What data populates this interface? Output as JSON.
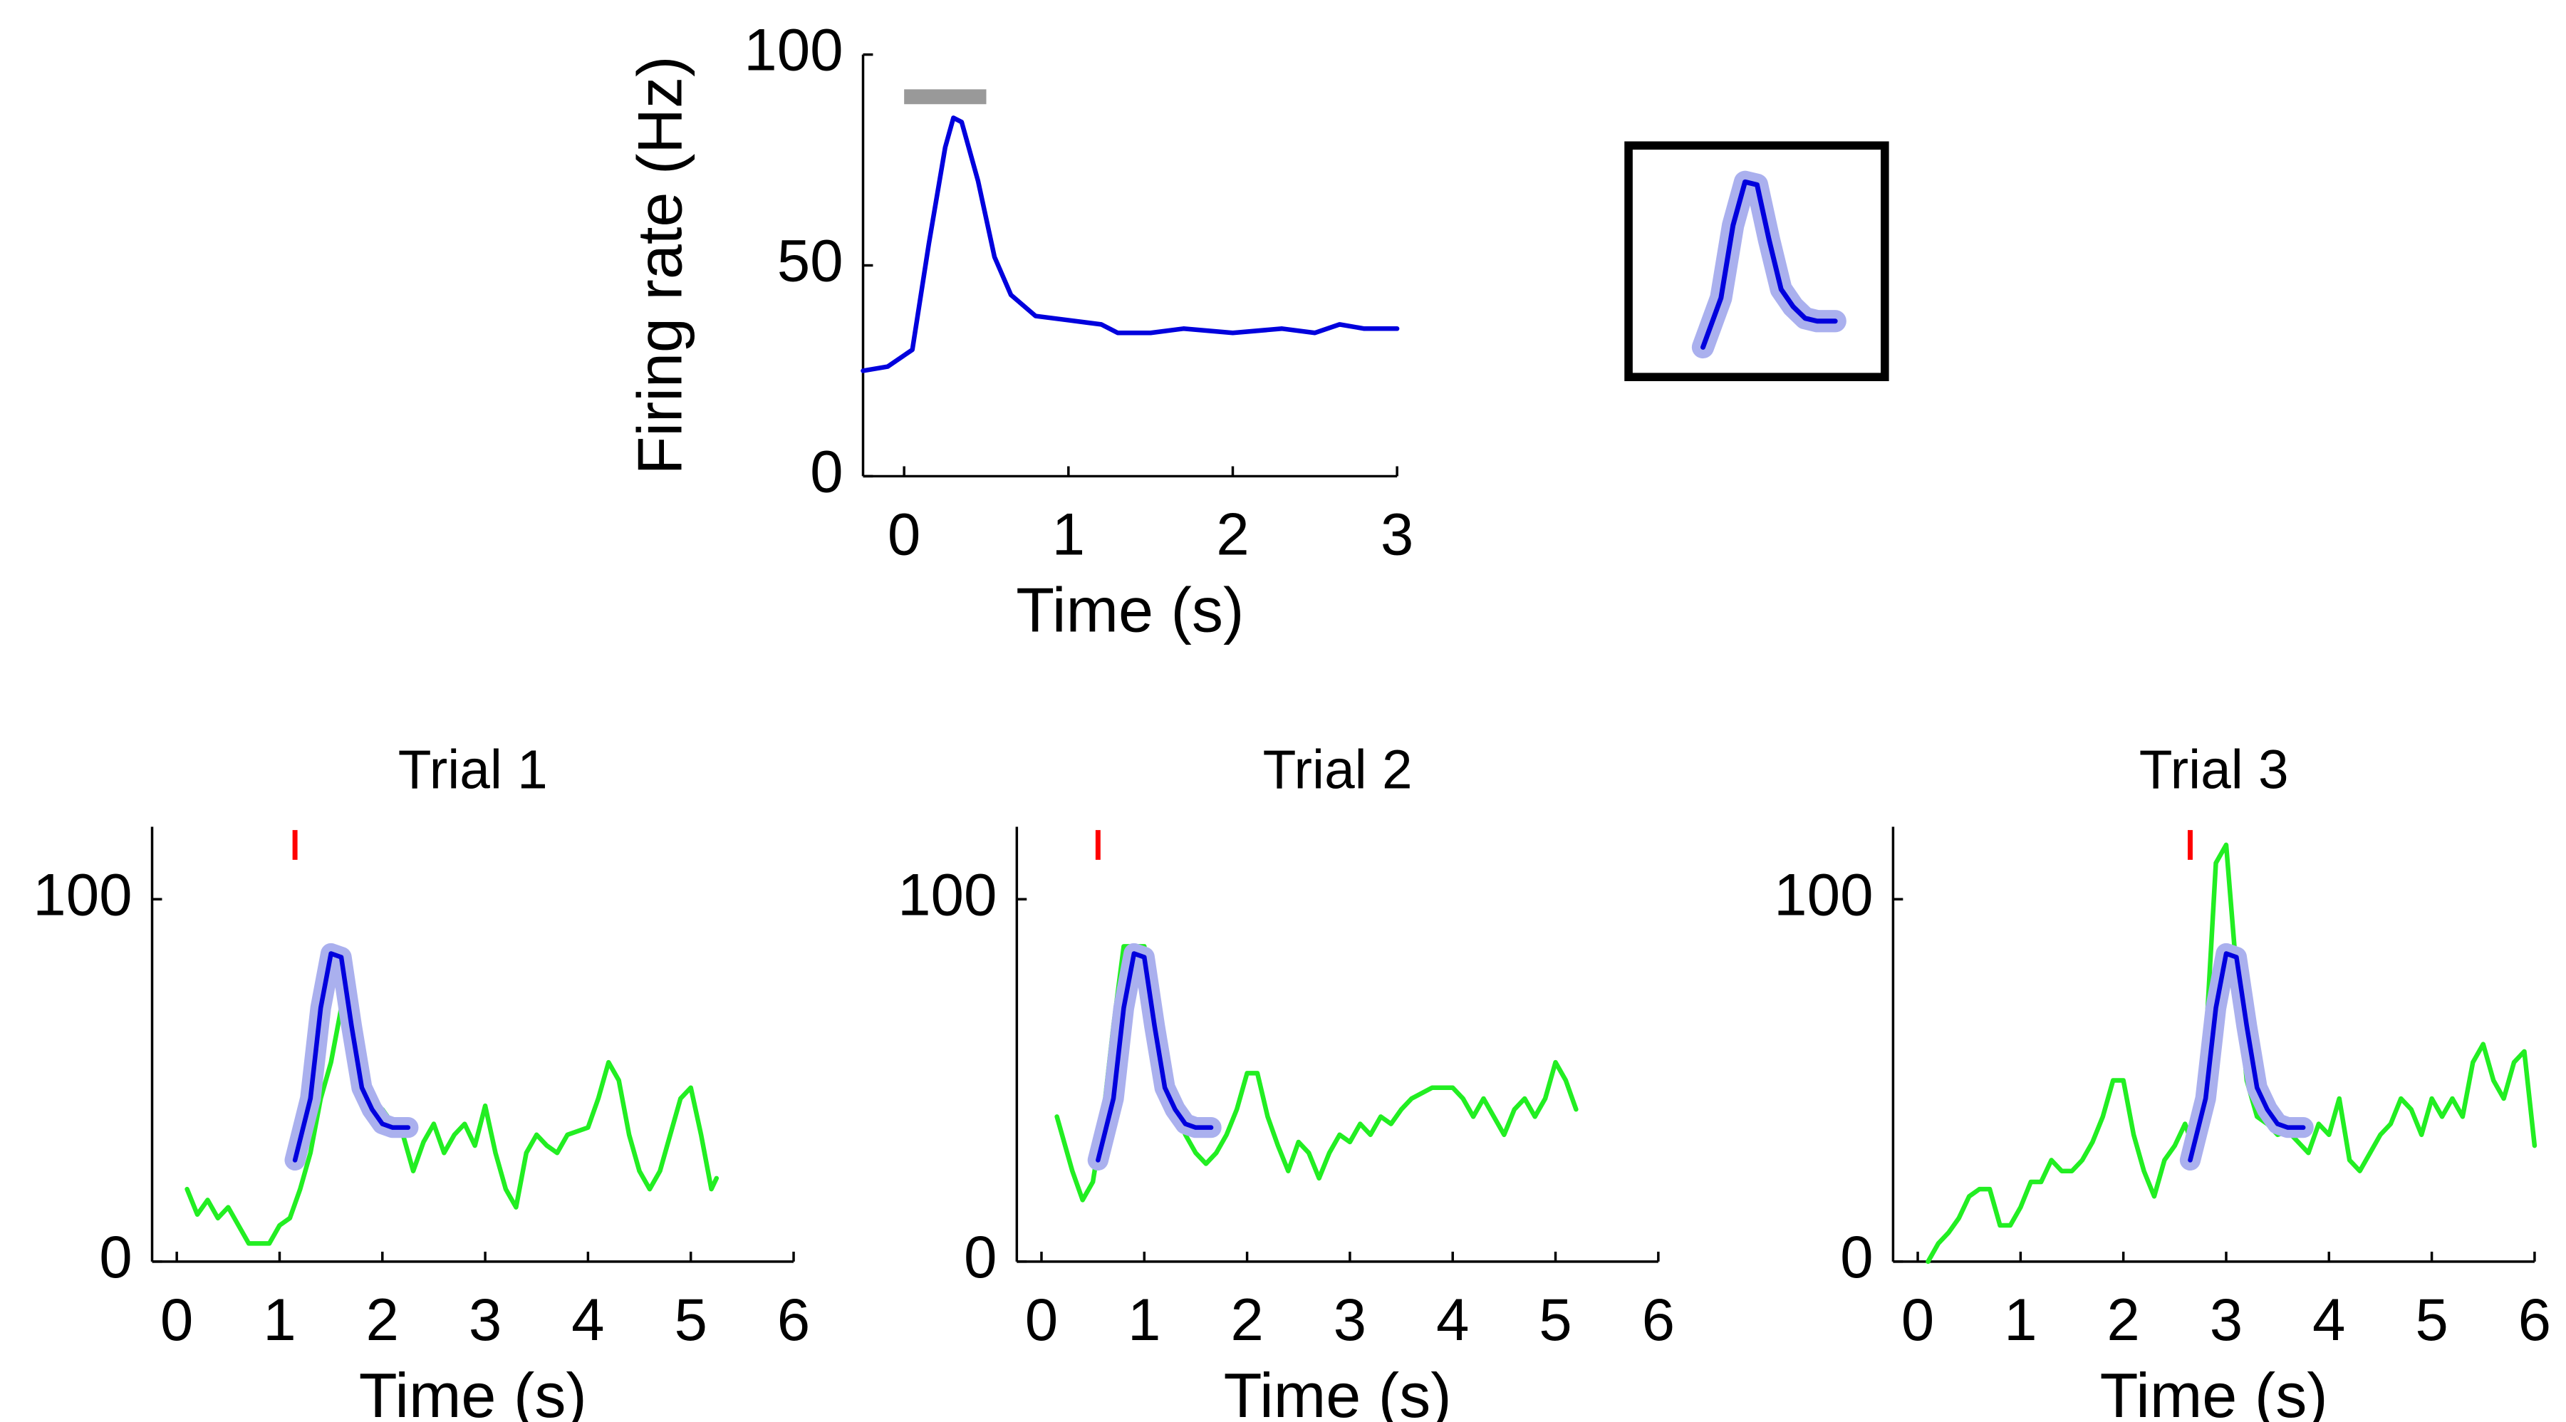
{
  "chart_data": [
    {
      "type": "line",
      "xlabel": "Time (s)",
      "ylabel": "Firing rate (Hz)",
      "xlim": [
        -0.25,
        3
      ],
      "ylim": [
        0,
        100
      ],
      "xticks": [
        0,
        1,
        2,
        3
      ],
      "yticks": [
        0,
        50,
        100
      ],
      "stimulus": {
        "x": [
          0,
          0.5
        ],
        "y": 90,
        "color": "#999999"
      },
      "series": [
        {
          "color": "#0000dd",
          "x": [
            -0.25,
            -0.1,
            0.05,
            0.15,
            0.25,
            0.3,
            0.35,
            0.45,
            0.55,
            0.65,
            0.8,
            1.0,
            1.2,
            1.3,
            1.5,
            1.7,
            2.0,
            2.3,
            2.5,
            2.65,
            2.8,
            3.0
          ],
          "values": [
            25,
            26,
            30,
            55,
            78,
            85,
            84,
            70,
            52,
            43,
            38,
            37,
            36,
            34,
            34,
            35,
            34,
            35,
            34,
            36,
            35,
            35
          ]
        }
      ]
    },
    {
      "type": "template",
      "band_color": "#aab0ee",
      "series": [
        {
          "color": "#0000dd",
          "x": [
            0,
            0.15,
            0.25,
            0.35,
            0.45,
            0.55,
            0.65,
            0.75,
            0.85,
            0.95,
            1.1
          ],
          "values": [
            28,
            45,
            70,
            85,
            84,
            65,
            48,
            42,
            38,
            37,
            37
          ]
        }
      ]
    },
    {
      "type": "trial",
      "title": "Trial 1",
      "xlabel": "Time (s)",
      "xlim": [
        -0.24,
        6
      ],
      "ylim": [
        0,
        120
      ],
      "xticks": [
        0,
        1,
        2,
        3,
        4,
        5,
        6
      ],
      "yticks": [
        0,
        100
      ],
      "marker": {
        "x": 1.15,
        "color": "#ff0000"
      },
      "band_color": "#aab0ee",
      "series": [
        {
          "color": "#22ee22",
          "x": [
            0.1,
            0.2,
            0.3,
            0.4,
            0.5,
            0.7,
            0.9,
            1.0,
            1.1,
            1.2,
            1.3,
            1.4,
            1.5,
            1.6,
            1.7,
            1.8,
            1.9,
            2.0,
            2.1,
            2.2,
            2.3,
            2.4,
            2.5,
            2.6,
            2.7,
            2.8,
            2.9,
            3.0,
            3.1,
            3.2,
            3.3,
            3.4,
            3.5,
            3.6,
            3.7,
            3.8,
            4.0,
            4.1,
            4.2,
            4.3,
            4.4,
            4.5,
            4.6,
            4.7,
            4.8,
            4.9,
            5.0,
            5.1,
            5.2,
            5.25
          ],
          "values": [
            20,
            13,
            17,
            12,
            15,
            5,
            5,
            10,
            12,
            20,
            30,
            45,
            55,
            70,
            60,
            45,
            40,
            42,
            38,
            35,
            25,
            33,
            38,
            30,
            35,
            38,
            32,
            43,
            30,
            20,
            15,
            30,
            35,
            32,
            30,
            35,
            37,
            45,
            55,
            50,
            35,
            25,
            20,
            25,
            35,
            45,
            48,
            35,
            20,
            23
          ]
        },
        {
          "color": "#0000dd",
          "template": true,
          "x": [
            1.15,
            1.3,
            1.4,
            1.5,
            1.6,
            1.7,
            1.8,
            1.9,
            2.0,
            2.1,
            2.25
          ],
          "values": [
            28,
            45,
            70,
            85,
            84,
            65,
            48,
            42,
            38,
            37,
            37
          ]
        }
      ]
    },
    {
      "type": "trial",
      "title": "Trial 2",
      "xlabel": "Time (s)",
      "xlim": [
        -0.24,
        6
      ],
      "ylim": [
        0,
        120
      ],
      "xticks": [
        0,
        1,
        2,
        3,
        4,
        5,
        6
      ],
      "yticks": [
        0,
        100
      ],
      "marker": {
        "x": 0.55,
        "color": "#ff0000"
      },
      "band_color": "#aab0ee",
      "series": [
        {
          "color": "#22ee22",
          "x": [
            0.15,
            0.3,
            0.4,
            0.5,
            0.6,
            0.7,
            0.8,
            0.9,
            1.0,
            1.1,
            1.2,
            1.3,
            1.4,
            1.5,
            1.6,
            1.7,
            1.8,
            1.9,
            2.0,
            2.1,
            2.2,
            2.3,
            2.4,
            2.5,
            2.6,
            2.7,
            2.8,
            2.9,
            3.0,
            3.1,
            3.2,
            3.3,
            3.4,
            3.5,
            3.6,
            3.8,
            4.0,
            4.1,
            4.2,
            4.3,
            4.4,
            4.5,
            4.6,
            4.7,
            4.8,
            4.9,
            5.0,
            5.1,
            5.2
          ],
          "values": [
            40,
            25,
            17,
            22,
            40,
            65,
            87,
            87,
            87,
            70,
            55,
            42,
            35,
            30,
            27,
            30,
            35,
            42,
            52,
            52,
            40,
            32,
            25,
            33,
            30,
            23,
            30,
            35,
            33,
            38,
            35,
            40,
            38,
            42,
            45,
            48,
            48,
            45,
            40,
            45,
            40,
            35,
            42,
            45,
            40,
            45,
            55,
            50,
            42
          ]
        },
        {
          "color": "#0000dd",
          "template": true,
          "x": [
            0.55,
            0.7,
            0.8,
            0.9,
            1.0,
            1.1,
            1.2,
            1.3,
            1.4,
            1.5,
            1.65
          ],
          "values": [
            28,
            45,
            70,
            85,
            84,
            65,
            48,
            42,
            38,
            37,
            37
          ]
        }
      ]
    },
    {
      "type": "trial",
      "title": "Trial 3",
      "xlabel": "Time (s)",
      "xlim": [
        -0.24,
        6
      ],
      "ylim": [
        0,
        120
      ],
      "xticks": [
        0,
        1,
        2,
        3,
        4,
        5,
        6
      ],
      "yticks": [
        0,
        100
      ],
      "marker": {
        "x": 2.65,
        "color": "#ff0000"
      },
      "band_color": "#aab0ee",
      "series": [
        {
          "color": "#22ee22",
          "x": [
            0.1,
            0.2,
            0.3,
            0.4,
            0.5,
            0.6,
            0.7,
            0.8,
            0.9,
            1.0,
            1.1,
            1.2,
            1.3,
            1.4,
            1.5,
            1.6,
            1.7,
            1.8,
            1.9,
            2.0,
            2.1,
            2.2,
            2.3,
            2.4,
            2.5,
            2.6,
            2.7,
            2.8,
            2.9,
            3.0,
            3.1,
            3.2,
            3.3,
            3.4,
            3.5,
            3.6,
            3.7,
            3.8,
            3.9,
            4.0,
            4.1,
            4.2,
            4.3,
            4.4,
            4.5,
            4.6,
            4.7,
            4.8,
            4.9,
            5.0,
            5.1,
            5.2,
            5.3,
            5.4,
            5.5,
            5.6,
            5.7,
            5.8,
            5.9,
            6.0
          ],
          "values": [
            0,
            5,
            8,
            12,
            18,
            20,
            20,
            10,
            10,
            15,
            22,
            22,
            28,
            25,
            25,
            28,
            33,
            40,
            50,
            50,
            35,
            25,
            18,
            28,
            32,
            38,
            30,
            60,
            110,
            115,
            80,
            50,
            40,
            38,
            35,
            36,
            33,
            30,
            38,
            35,
            45,
            28,
            25,
            30,
            35,
            38,
            45,
            42,
            35,
            45,
            40,
            45,
            40,
            55,
            60,
            50,
            45,
            55,
            58,
            32
          ]
        },
        {
          "color": "#0000dd",
          "template": true,
          "x": [
            2.65,
            2.8,
            2.9,
            3.0,
            3.1,
            3.2,
            3.3,
            3.4,
            3.5,
            3.6,
            3.75
          ],
          "values": [
            28,
            45,
            70,
            85,
            84,
            65,
            48,
            42,
            38,
            37,
            37
          ]
        }
      ]
    }
  ]
}
